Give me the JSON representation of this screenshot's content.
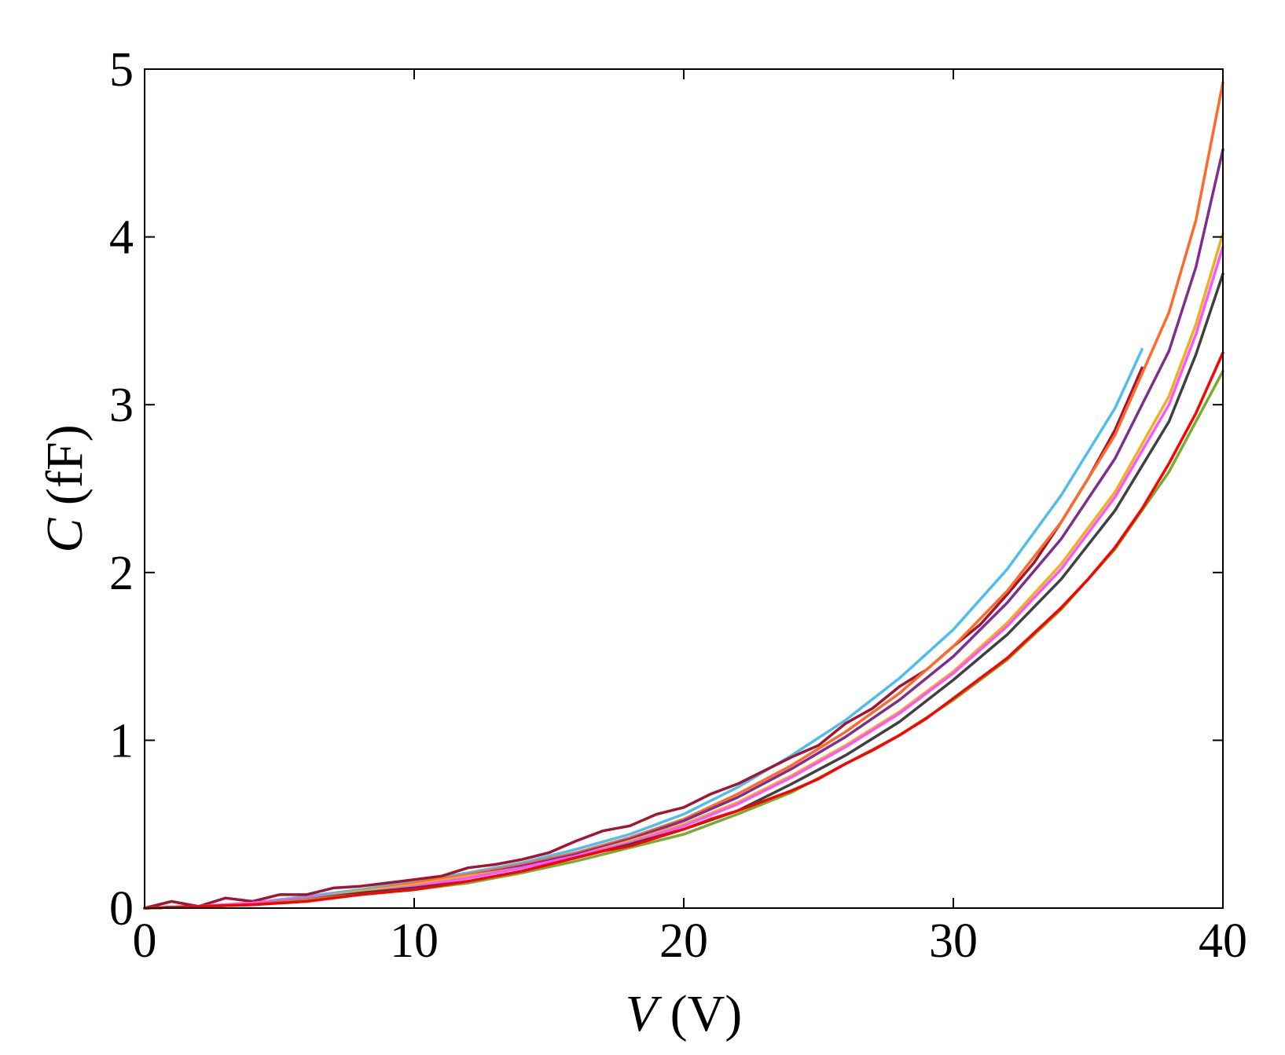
{
  "chart_data": {
    "type": "line",
    "title": "",
    "xlabel": {
      "symbol": "V",
      "unit": " (V)"
    },
    "ylabel": {
      "symbol": "C",
      "unit": " (fF)"
    },
    "xlim": [
      0,
      40
    ],
    "ylim": [
      0,
      5
    ],
    "xticks": [
      0,
      10,
      20,
      30,
      40
    ],
    "yticks": [
      0,
      1,
      2,
      3,
      4,
      5
    ],
    "xtick_labels": [
      "0",
      "10",
      "20",
      "30",
      "40"
    ],
    "ytick_labels": [
      "0",
      "1",
      "2",
      "3",
      "4",
      "5"
    ],
    "grid": false,
    "legend": "none",
    "series": [
      {
        "color": "#4dbeee",
        "x": [
          0,
          2,
          4,
          6,
          8,
          10,
          12,
          14,
          16,
          18,
          20,
          22,
          24,
          26,
          28,
          30,
          32,
          34,
          36,
          37
        ],
        "y": [
          0,
          0.01,
          0.03,
          0.07,
          0.11,
          0.16,
          0.21,
          0.27,
          0.35,
          0.44,
          0.56,
          0.72,
          0.91,
          1.12,
          1.37,
          1.66,
          2.02,
          2.46,
          2.98,
          3.33
        ]
      },
      {
        "color": "#a2142f",
        "x": [
          0,
          1,
          2,
          3,
          4,
          5,
          6,
          7,
          8,
          9,
          10,
          11,
          12,
          13,
          14,
          15,
          16,
          17,
          18,
          19,
          20,
          21,
          22,
          23,
          24,
          25,
          26,
          27,
          28,
          29,
          30,
          31,
          32,
          33,
          34,
          35,
          36,
          37
        ],
        "y": [
          0,
          0.04,
          0.01,
          0.06,
          0.04,
          0.08,
          0.08,
          0.12,
          0.13,
          0.15,
          0.17,
          0.19,
          0.24,
          0.26,
          0.29,
          0.33,
          0.4,
          0.46,
          0.49,
          0.56,
          0.6,
          0.68,
          0.74,
          0.82,
          0.9,
          0.97,
          1.1,
          1.19,
          1.32,
          1.42,
          1.56,
          1.69,
          1.87,
          2.06,
          2.3,
          2.56,
          2.85,
          3.22
        ]
      },
      {
        "color": "#ff6929",
        "x": [
          0,
          2,
          4,
          6,
          8,
          10,
          12,
          14,
          16,
          18,
          20,
          22,
          24,
          26,
          28,
          30,
          32,
          34,
          36,
          38,
          39,
          40
        ],
        "y": [
          0,
          0.01,
          0.03,
          0.06,
          0.1,
          0.15,
          0.2,
          0.26,
          0.33,
          0.42,
          0.53,
          0.68,
          0.85,
          1.05,
          1.28,
          1.56,
          1.89,
          2.3,
          2.82,
          3.55,
          4.1,
          4.92
        ]
      },
      {
        "color": "#7e2f8e",
        "x": [
          0,
          2,
          4,
          6,
          8,
          10,
          12,
          14,
          16,
          18,
          20,
          22,
          24,
          26,
          28,
          30,
          32,
          34,
          36,
          38,
          39,
          40
        ],
        "y": [
          0,
          0.01,
          0.03,
          0.06,
          0.1,
          0.14,
          0.19,
          0.25,
          0.32,
          0.41,
          0.52,
          0.66,
          0.83,
          1.02,
          1.24,
          1.5,
          1.82,
          2.2,
          2.68,
          3.32,
          3.82,
          4.52
        ]
      },
      {
        "color": "#edb120",
        "x": [
          0,
          2,
          4,
          6,
          8,
          10,
          12,
          14,
          16,
          18,
          20,
          22,
          24,
          26,
          28,
          30,
          32,
          34,
          36,
          38,
          39,
          40
        ],
        "y": [
          0,
          0.01,
          0.03,
          0.06,
          0.1,
          0.14,
          0.19,
          0.24,
          0.31,
          0.4,
          0.5,
          0.63,
          0.79,
          0.97,
          1.17,
          1.41,
          1.7,
          2.05,
          2.48,
          3.05,
          3.48,
          4.02
        ]
      },
      {
        "color": "#ff55ff",
        "x": [
          0,
          2,
          4,
          6,
          8,
          10,
          12,
          14,
          16,
          18,
          20,
          22,
          24,
          26,
          28,
          30,
          32,
          34,
          36,
          38,
          39,
          40
        ],
        "y": [
          0,
          0.01,
          0.03,
          0.06,
          0.09,
          0.13,
          0.18,
          0.24,
          0.31,
          0.39,
          0.49,
          0.62,
          0.78,
          0.96,
          1.16,
          1.4,
          1.68,
          2.02,
          2.45,
          3.0,
          3.42,
          3.94
        ]
      },
      {
        "color": "#404040",
        "x": [
          0,
          2,
          4,
          6,
          8,
          10,
          12,
          14,
          16,
          18,
          20,
          22,
          24,
          26,
          28,
          30,
          32,
          34,
          36,
          38,
          39,
          40
        ],
        "y": [
          0,
          0.01,
          0.02,
          0.05,
          0.09,
          0.12,
          0.16,
          0.22,
          0.3,
          0.38,
          0.47,
          0.58,
          0.74,
          0.91,
          1.11,
          1.36,
          1.63,
          1.96,
          2.37,
          2.9,
          3.3,
          3.78
        ]
      },
      {
        "color": "#77ac30",
        "x": [
          0,
          2,
          4,
          6,
          8,
          10,
          12,
          14,
          16,
          18,
          20,
          22,
          24,
          26,
          28,
          30,
          32,
          34,
          36,
          38,
          39,
          40
        ],
        "y": [
          0,
          0.01,
          0.02,
          0.05,
          0.08,
          0.11,
          0.15,
          0.21,
          0.28,
          0.36,
          0.44,
          0.56,
          0.69,
          0.86,
          1.03,
          1.24,
          1.48,
          1.78,
          2.14,
          2.6,
          2.9,
          3.2
        ]
      },
      {
        "color": "#ff0000",
        "x": [
          0,
          2,
          4,
          6,
          8,
          10,
          12,
          14,
          16,
          17,
          18,
          19,
          20,
          21,
          22,
          23,
          24,
          25,
          26,
          27,
          28,
          29,
          30,
          31,
          32,
          33,
          34,
          35,
          36,
          37,
          38,
          39,
          40
        ],
        "y": [
          0,
          0.01,
          0.02,
          0.04,
          0.08,
          0.11,
          0.16,
          0.22,
          0.3,
          0.34,
          0.37,
          0.42,
          0.47,
          0.53,
          0.58,
          0.64,
          0.7,
          0.77,
          0.86,
          0.94,
          1.03,
          1.13,
          1.25,
          1.37,
          1.49,
          1.64,
          1.79,
          1.96,
          2.15,
          2.38,
          2.65,
          2.95,
          3.31
        ]
      }
    ]
  }
}
